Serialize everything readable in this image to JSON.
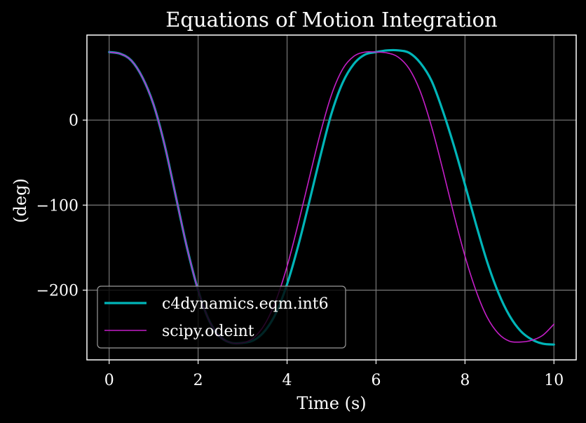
{
  "chart_data": {
    "type": "line",
    "title": "Equations of Motion Integration",
    "xlabel": "Time (s)",
    "ylabel": "(deg)",
    "xlim": [
      -0.5,
      10.5
    ],
    "ylim": [
      -282,
      100
    ],
    "xticks": [
      0,
      2,
      4,
      6,
      8,
      10
    ],
    "xtick_labels": [
      "0",
      "2",
      "4",
      "6",
      "8",
      "10"
    ],
    "yticks": [
      0,
      -100,
      -200
    ],
    "ytick_labels": [
      "0",
      "−100",
      "−200"
    ],
    "grid": true,
    "legend_position": "lower-left",
    "background": "#000000",
    "series": [
      {
        "name": "c4dynamics.eqm.int6",
        "color": "#00b5b8",
        "x": [
          0,
          0.25,
          0.5,
          0.75,
          1.0,
          1.25,
          1.5,
          1.75,
          2.0,
          2.25,
          2.5,
          2.75,
          3.0,
          3.25,
          3.5,
          3.75,
          4.0,
          4.25,
          4.5,
          4.75,
          5.0,
          5.25,
          5.5,
          5.75,
          6.0,
          6.25,
          6.5,
          6.75,
          7.0,
          7.25,
          7.5,
          7.75,
          8.0,
          8.25,
          8.5,
          8.75,
          9.0,
          9.25,
          9.5,
          9.75,
          10.0
        ],
        "y": [
          80,
          78,
          70,
          50,
          18,
          -30,
          -90,
          -150,
          -200,
          -236,
          -255,
          -262,
          -262,
          -259,
          -248,
          -227,
          -193,
          -148,
          -96,
          -42,
          8,
          44,
          66,
          77,
          80,
          82,
          82,
          79,
          67,
          46,
          11,
          -30,
          -76,
          -123,
          -167,
          -203,
          -230,
          -248,
          -258,
          -263,
          -264
        ]
      },
      {
        "name": "scipy.odeint",
        "color": "#c41ec7",
        "x": [
          0,
          0.25,
          0.5,
          0.75,
          1.0,
          1.25,
          1.5,
          1.75,
          2.0,
          2.25,
          2.5,
          2.75,
          3.0,
          3.25,
          3.5,
          3.75,
          4.0,
          4.25,
          4.5,
          4.75,
          5.0,
          5.25,
          5.5,
          5.75,
          6.0,
          6.25,
          6.5,
          6.75,
          7.0,
          7.25,
          7.5,
          7.75,
          8.0,
          8.25,
          8.5,
          8.75,
          9.0,
          9.25,
          9.5,
          9.75,
          10.0
        ],
        "y": [
          80,
          78,
          70,
          50,
          18,
          -30,
          -90,
          -150,
          -200,
          -236,
          -255,
          -262,
          -262,
          -256,
          -240,
          -212,
          -172,
          -122,
          -68,
          -15,
          30,
          60,
          75,
          80,
          80,
          79,
          74,
          60,
          33,
          -8,
          -58,
          -111,
          -160,
          -201,
          -232,
          -251,
          -260,
          -261,
          -259,
          -253,
          -240
        ]
      }
    ]
  }
}
